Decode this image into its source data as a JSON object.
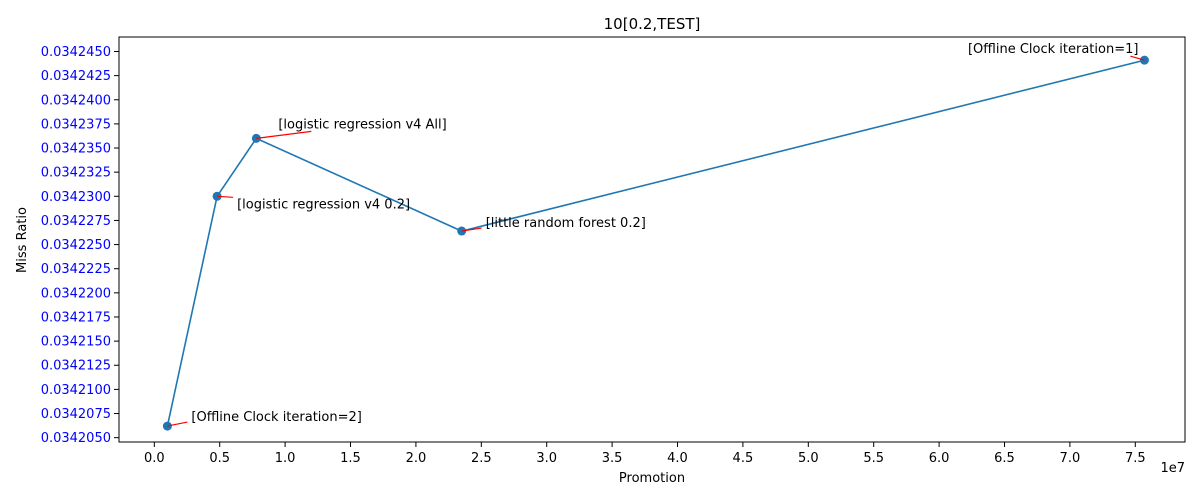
{
  "chart_data": {
    "type": "line",
    "title": "10[0.2,TEST]",
    "xlabel": "Promotion",
    "ylabel": "Miss Ratio",
    "x_offset_label": "1e7",
    "x_ticks": [
      0.0,
      0.5,
      1.0,
      1.5,
      2.0,
      2.5,
      3.0,
      3.5,
      4.0,
      4.5,
      5.0,
      5.5,
      6.0,
      6.5,
      7.0,
      7.5
    ],
    "x_tick_labels": [
      "0.0",
      "0.5",
      "1.0",
      "1.5",
      "2.0",
      "2.5",
      "3.0",
      "3.5",
      "4.0",
      "4.5",
      "5.0",
      "5.5",
      "6.0",
      "6.5",
      "7.0",
      "7.5"
    ],
    "y_ticks": [
      0.034205,
      0.0342075,
      0.03421,
      0.0342125,
      0.034215,
      0.0342175,
      0.03422,
      0.0342225,
      0.034225,
      0.0342275,
      0.03423,
      0.0342325,
      0.034235,
      0.0342375,
      0.03424,
      0.0342425,
      0.034245
    ],
    "y_tick_labels": [
      "0.0342050",
      "0.0342075",
      "0.0342100",
      "0.0342125",
      "0.0342150",
      "0.0342175",
      "0.0342200",
      "0.0342225",
      "0.0342250",
      "0.0342275",
      "0.0342300",
      "0.0342325",
      "0.0342350",
      "0.0342375",
      "0.0342400",
      "0.0342425",
      "0.0342450"
    ],
    "xlim": [
      -0.27,
      7.88
    ],
    "ylim": [
      0.03420455,
      0.0342465
    ],
    "grid": false,
    "series": [
      {
        "color": "#1f77b4",
        "x": [
          0.1,
          0.48,
          0.78,
          2.35,
          7.57
        ],
        "y": [
          0.0342062,
          0.03423,
          0.034236,
          0.0342264,
          0.0342441
        ]
      }
    ],
    "annotations": [
      {
        "text": "[Offline Clock iteration=2]",
        "point": 0
      },
      {
        "text": "[logistic regression v4 0.2]",
        "point": 1
      },
      {
        "text": "[logistic regression v4 All]",
        "point": 2
      },
      {
        "text": "[little random forest 0.2]",
        "point": 3
      },
      {
        "text": "[Offline Clock iteration=1]",
        "point": 4
      }
    ],
    "colors": {
      "line": "#1f77b4",
      "annotation_arrow": "#ff0000",
      "y_tick_text": "#0000ff",
      "text": "#000000"
    }
  }
}
